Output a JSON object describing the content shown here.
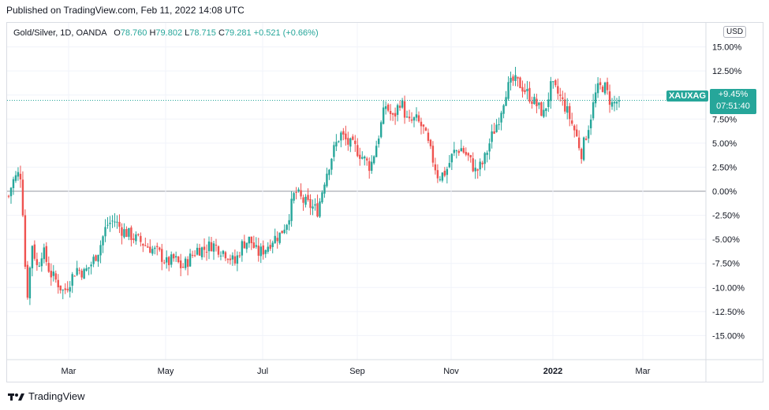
{
  "published": "Published on TradingView.com, Feb 11, 2022 14:08 UTC",
  "legend": {
    "symbol": "Gold/Silver, 1D, OANDA",
    "o_label": "O",
    "o_value": "78.760",
    "h_label": "H",
    "h_value": "79.802",
    "l_label": "L",
    "l_value": "78.715",
    "c_label": "C",
    "c_value": "79.281",
    "change": "+0.521 (+0.66%)"
  },
  "currency_button": "USD",
  "price_tag": {
    "symbol": "XAUXAG",
    "pct": "+9.45%",
    "countdown": "07:51:40"
  },
  "footer": {
    "brand": "TradingView",
    "logo_icon": "tradingview-logo-icon"
  },
  "colors": {
    "up": "#26a69a",
    "down": "#ef5350",
    "grid": "#f0f3fa",
    "zero_line": "#9598a1",
    "last_line": "#26a69a"
  },
  "chart_data": {
    "type": "candlestick",
    "y_scale": "percent",
    "ylim": [
      -17.5,
      17.5
    ],
    "y_ticks": [
      "15.00%",
      "12.50%",
      "10.00%",
      "7.50%",
      "5.00%",
      "2.50%",
      "0.00%",
      "-2.50%",
      "-5.00%",
      "-7.50%",
      "-10.00%",
      "-12.50%",
      "-15.00%"
    ],
    "x_ticks": [
      "Mar",
      "May",
      "Jul",
      "Sep",
      "Nov",
      "2022",
      "Mar"
    ],
    "last_value_pct": 9.45,
    "grid": true,
    "series": [
      {
        "pos": 0,
        "close": -0.5
      },
      {
        "pos": 0.5,
        "close": 1.0
      },
      {
        "pos": 1,
        "close": 1.5
      },
      {
        "pos": 1.5,
        "close": 2.0
      },
      {
        "pos": 1.8,
        "close": 0.5
      },
      {
        "pos": 2.0,
        "close": -6.0
      },
      {
        "pos": 2.6,
        "close": -11.5
      },
      {
        "pos": 3.0,
        "close": -5.0
      },
      {
        "pos": 3.8,
        "close": -8.0
      },
      {
        "pos": 4.5,
        "close": -6.0
      },
      {
        "pos": 5.5,
        "close": -8.5
      },
      {
        "pos": 6.5,
        "close": -9.5
      },
      {
        "pos": 7.3,
        "close": -10.5
      },
      {
        "pos": 8.0,
        "close": -9.5
      },
      {
        "pos": 9.0,
        "close": -8.0
      },
      {
        "pos": 10.0,
        "close": -8.5
      },
      {
        "pos": 11.0,
        "close": -7.5
      },
      {
        "pos": 12.0,
        "close": -6.0
      },
      {
        "pos": 13.0,
        "close": -3.5
      },
      {
        "pos": 14.0,
        "close": -3.0
      },
      {
        "pos": 15.0,
        "close": -4.0
      },
      {
        "pos": 16.0,
        "close": -4.5
      },
      {
        "pos": 17.0,
        "close": -5.0
      },
      {
        "pos": 18.0,
        "close": -5.5
      },
      {
        "pos": 19.0,
        "close": -6.0
      },
      {
        "pos": 20.0,
        "close": -6.5
      },
      {
        "pos": 21.0,
        "close": -7.5
      },
      {
        "pos": 22.0,
        "close": -7.0
      },
      {
        "pos": 23.0,
        "close": -8.0
      },
      {
        "pos": 24.0,
        "close": -7.0
      },
      {
        "pos": 25.0,
        "close": -6.0
      },
      {
        "pos": 26.0,
        "close": -6.0
      },
      {
        "pos": 27.0,
        "close": -5.5
      },
      {
        "pos": 28.0,
        "close": -6.0
      },
      {
        "pos": 29.0,
        "close": -6.5
      },
      {
        "pos": 30.0,
        "close": -7.5
      },
      {
        "pos": 31.0,
        "close": -5.5
      },
      {
        "pos": 32.0,
        "close": -5.0
      },
      {
        "pos": 33.0,
        "close": -6.5
      },
      {
        "pos": 34.0,
        "close": -6.0
      },
      {
        "pos": 35.0,
        "close": -5.0
      },
      {
        "pos": 36.0,
        "close": -4.5
      },
      {
        "pos": 37.0,
        "close": -3.0
      },
      {
        "pos": 38.0,
        "close": 0.0
      },
      {
        "pos": 39.0,
        "close": -1.0
      },
      {
        "pos": 40.0,
        "close": -1.5
      },
      {
        "pos": 41.0,
        "close": -2.0
      },
      {
        "pos": 42.0,
        "close": 1.5
      },
      {
        "pos": 43.0,
        "close": 4.0
      },
      {
        "pos": 44.0,
        "close": 6.0
      },
      {
        "pos": 45.0,
        "close": 5.0
      },
      {
        "pos": 46.0,
        "close": 4.5
      },
      {
        "pos": 47.0,
        "close": 3.5
      },
      {
        "pos": 48.0,
        "close": 2.5
      },
      {
        "pos": 49.0,
        "close": 5.5
      },
      {
        "pos": 50.0,
        "close": 9.0
      },
      {
        "pos": 51.0,
        "close": 7.5
      },
      {
        "pos": 52.0,
        "close": 9.5
      },
      {
        "pos": 53.0,
        "close": 7.0
      },
      {
        "pos": 54.0,
        "close": 7.5
      },
      {
        "pos": 55.0,
        "close": 6.5
      },
      {
        "pos": 56.0,
        "close": 4.0
      },
      {
        "pos": 57.0,
        "close": 1.5
      },
      {
        "pos": 58.0,
        "close": 2.0
      },
      {
        "pos": 59.0,
        "close": 4.0
      },
      {
        "pos": 60.0,
        "close": 4.5
      },
      {
        "pos": 61.0,
        "close": 3.5
      },
      {
        "pos": 62.0,
        "close": 2.0
      },
      {
        "pos": 63.0,
        "close": 3.0
      },
      {
        "pos": 64.0,
        "close": 5.5
      },
      {
        "pos": 65.0,
        "close": 7.5
      },
      {
        "pos": 66.0,
        "close": 10.5
      },
      {
        "pos": 67.0,
        "close": 11.5
      },
      {
        "pos": 68.0,
        "close": 11.0
      },
      {
        "pos": 69.0,
        "close": 10.0
      },
      {
        "pos": 70.0,
        "close": 9.0
      },
      {
        "pos": 71.0,
        "close": 8.0
      },
      {
        "pos": 72.0,
        "close": 11.0
      },
      {
        "pos": 73.0,
        "close": 10.0
      },
      {
        "pos": 74.0,
        "close": 8.5
      },
      {
        "pos": 75.0,
        "close": 6.5
      },
      {
        "pos": 76.0,
        "close": 4.0
      },
      {
        "pos": 77.0,
        "close": 7.0
      },
      {
        "pos": 78.0,
        "close": 10.5
      },
      {
        "pos": 79.0,
        "close": 11.0
      },
      {
        "pos": 80.0,
        "close": 9.0
      },
      {
        "pos": 81.0,
        "close": 9.45
      }
    ]
  }
}
